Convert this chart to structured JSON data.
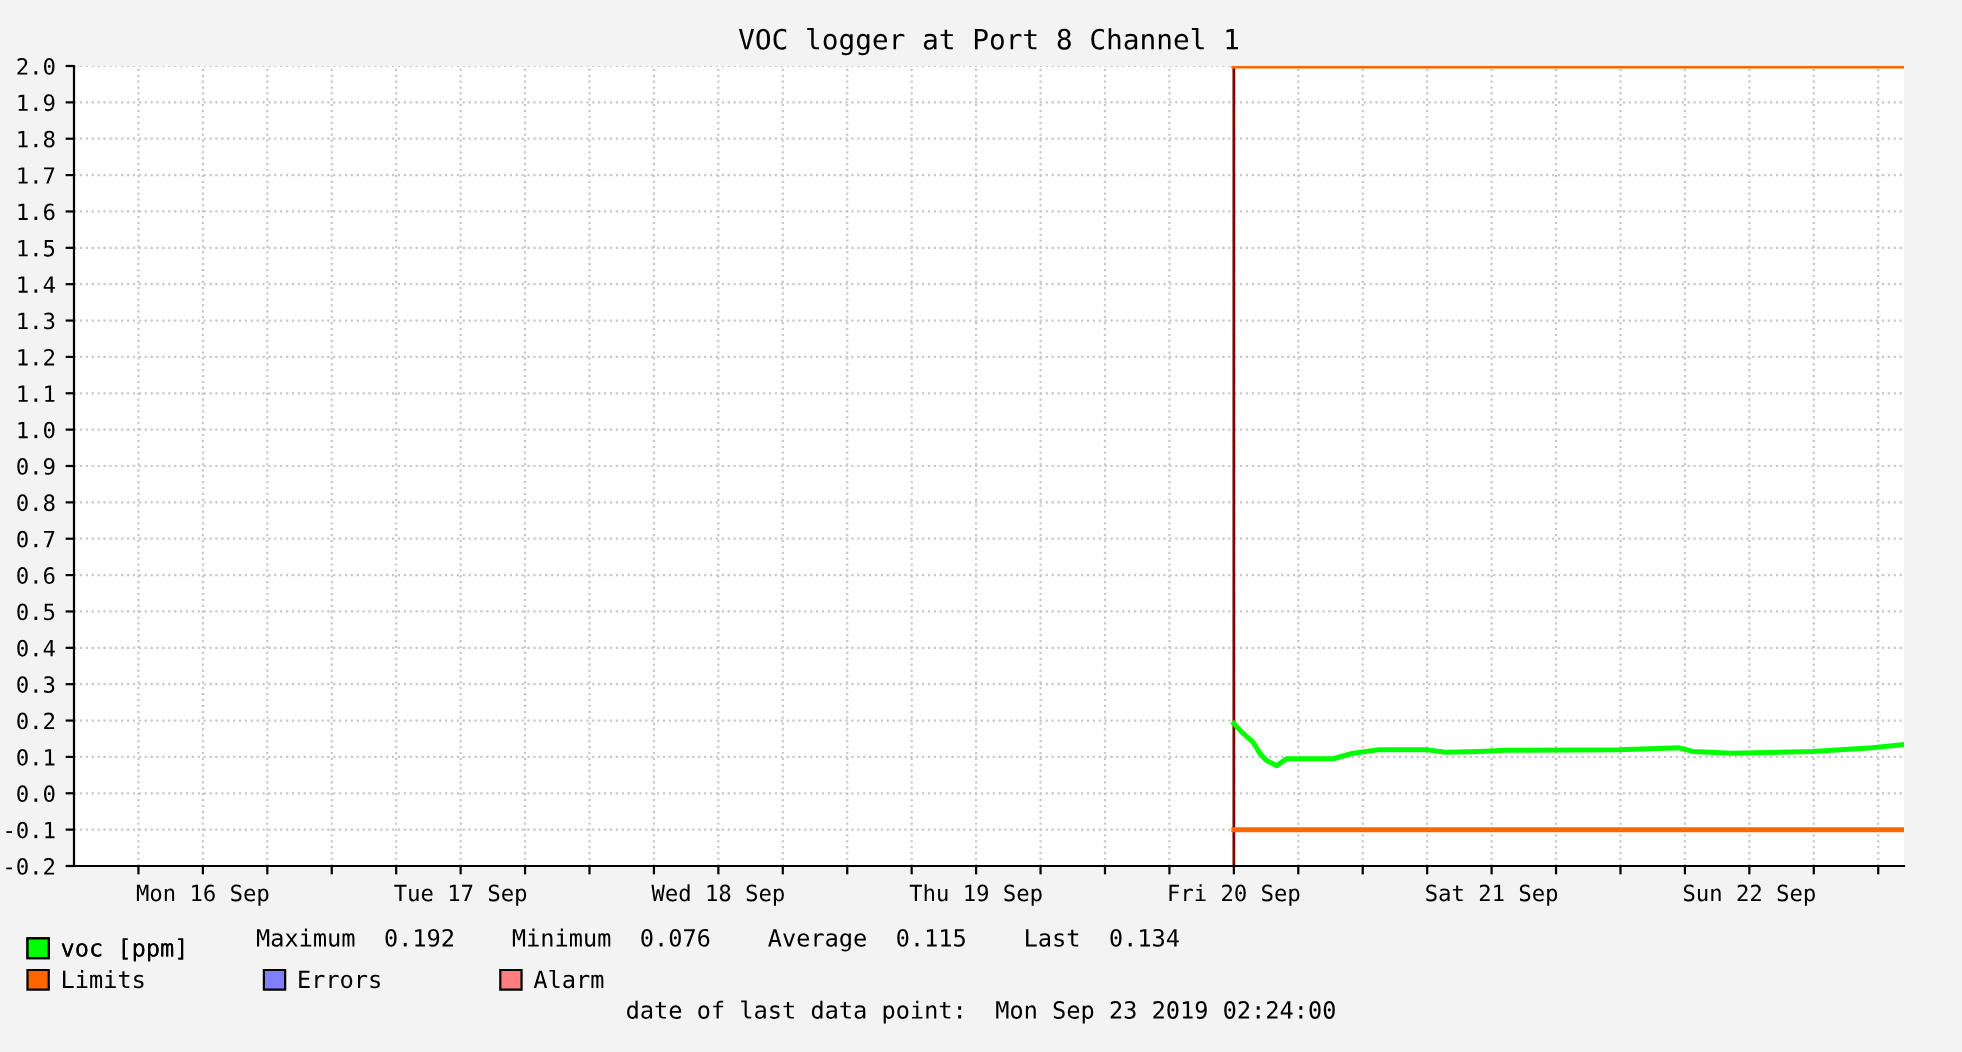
{
  "chart_data": {
    "type": "line",
    "title": "VOC logger at Port 8 Channel 1",
    "xlim": [
      "2019-09-16T00:00",
      "2019-09-23T02:24"
    ],
    "xticks": [
      {
        "value": "2019-09-16T06:00",
        "label": null
      },
      {
        "value": "2019-09-16T12:00",
        "label": "Mon 16 Sep"
      },
      {
        "value": "2019-09-16T18:00",
        "label": null
      },
      {
        "value": "2019-09-17T00:00",
        "label": null
      },
      {
        "value": "2019-09-17T06:00",
        "label": null
      },
      {
        "value": "2019-09-17T12:00",
        "label": "Tue 17 Sep"
      },
      {
        "value": "2019-09-17T18:00",
        "label": null
      },
      {
        "value": "2019-09-18T00:00",
        "label": null
      },
      {
        "value": "2019-09-18T06:00",
        "label": null
      },
      {
        "value": "2019-09-18T12:00",
        "label": "Wed 18 Sep"
      },
      {
        "value": "2019-09-18T18:00",
        "label": null
      },
      {
        "value": "2019-09-19T00:00",
        "label": null
      },
      {
        "value": "2019-09-19T06:00",
        "label": null
      },
      {
        "value": "2019-09-19T12:00",
        "label": "Thu 19 Sep"
      },
      {
        "value": "2019-09-19T18:00",
        "label": null
      },
      {
        "value": "2019-09-20T00:00",
        "label": null
      },
      {
        "value": "2019-09-20T06:00",
        "label": null
      },
      {
        "value": "2019-09-20T12:00",
        "label": "Fri 20 Sep"
      },
      {
        "value": "2019-09-20T18:00",
        "label": null
      },
      {
        "value": "2019-09-21T00:00",
        "label": null
      },
      {
        "value": "2019-09-21T06:00",
        "label": null
      },
      {
        "value": "2019-09-21T12:00",
        "label": "Sat 21 Sep"
      },
      {
        "value": "2019-09-21T18:00",
        "label": null
      },
      {
        "value": "2019-09-22T00:00",
        "label": null
      },
      {
        "value": "2019-09-22T06:00",
        "label": null
      },
      {
        "value": "2019-09-22T12:00",
        "label": "Sun 22 Sep"
      },
      {
        "value": "2019-09-22T18:00",
        "label": null
      },
      {
        "value": "2019-09-23T00:00",
        "label": null
      }
    ],
    "ylim": [
      -0.2,
      2.0
    ],
    "yticks": [
      -0.2,
      -0.1,
      {
        "value": 0,
        "label": "0.0"
      },
      0.1,
      0.2,
      0.3,
      0.4,
      0.5,
      0.6,
      0.7,
      0.8,
      0.9,
      {
        "value": 1,
        "label": "1.0"
      },
      1.1,
      1.2,
      1.3,
      1.4,
      1.5,
      1.6,
      1.7,
      1.8,
      1.9,
      {
        "value": 2,
        "label": "2.0"
      }
    ],
    "grid": true,
    "legend": "bottom left",
    "marker": "none",
    "line_style": "solid",
    "series": [
      {
        "name": "voc [ppm]",
        "color": "#00ff00",
        "x": [
          "2019-09-20T12:00",
          "2019-09-20T12:40",
          "2019-09-20T13:48",
          "2019-09-20T14:25",
          "2019-09-20T15:02",
          "2019-09-20T16:00",
          "2019-09-20T16:54",
          "2019-09-20T20:00",
          "2019-09-20T21:15",
          "2019-09-20T23:06",
          "2019-09-21T01:35",
          "2019-09-21T05:52",
          "2019-09-21T07:43",
          "2019-09-21T10:53",
          "2019-09-21T13:18",
          "2019-09-21T23:54",
          "2019-09-22T05:29",
          "2019-09-22T06:44",
          "2019-09-22T10:26",
          "2019-09-22T17:53",
          "2019-09-22T23:28",
          "2019-09-23T02:24"
        ],
        "values": [
          0.192,
          0.17,
          0.14,
          0.11,
          0.09,
          0.076,
          0.095,
          0.095,
          0.095,
          0.11,
          0.12,
          0.12,
          0.113,
          0.115,
          0.118,
          0.12,
          0.125,
          0.115,
          0.11,
          0.115,
          0.125,
          0.134
        ]
      },
      {
        "name": "Limits",
        "color": "#ff6600",
        "x": [
          "2019-09-20T12:00",
          "2019-09-23T02:24"
        ],
        "values": [
          2.0,
          2.0
        ]
      },
      {
        "color": "#ff6600",
        "x": [
          "2019-09-20T12:00",
          "2019-09-23T02:24"
        ],
        "values": [
          -0.1,
          -0.1
        ]
      },
      {
        "name": "Errors",
        "color": "#7f7fff"
      },
      {
        "name": "Alarm",
        "color": "#ff7f7f"
      }
    ],
    "ref_lines": [
      {
        "axis": "x",
        "value": "2019-09-20T12:00",
        "color": "#800000"
      }
    ],
    "annotations": [
      "Maximum  0.192    Minimum  0.076    Average  0.115    Last  0.134",
      "date of last data point:  Mon Sep 23 2019 02:24:00"
    ]
  }
}
